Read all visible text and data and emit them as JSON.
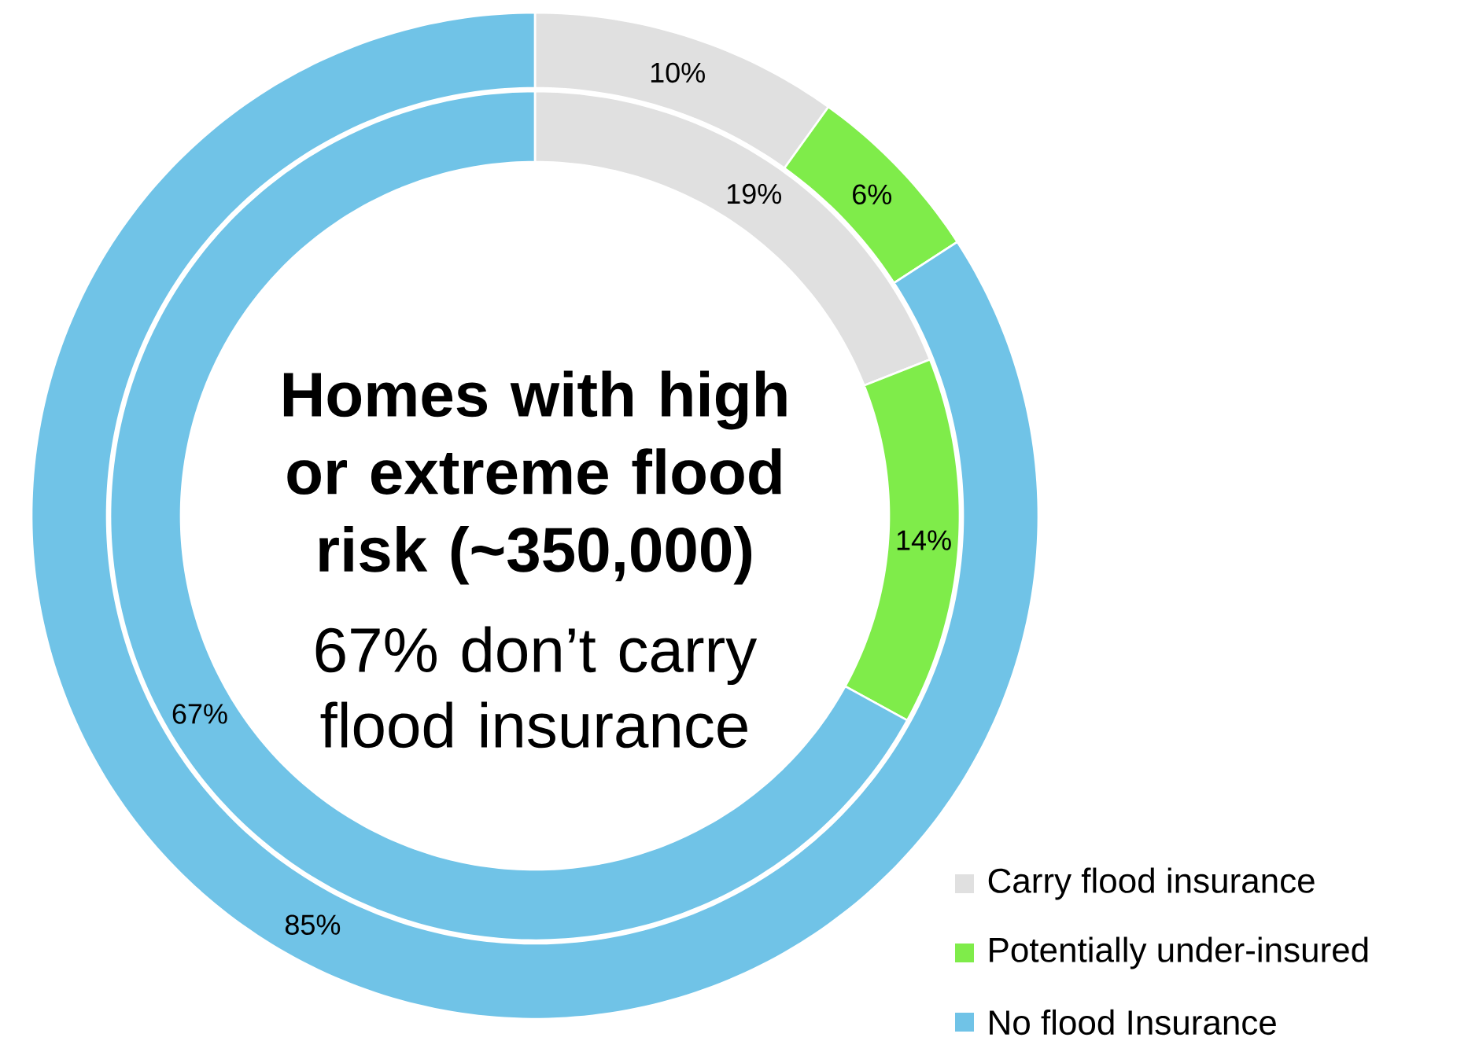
{
  "chart_data": {
    "type": "donut",
    "title": "Homes with high or extreme flood risk (~350,000)",
    "subtitle": "67% don’t carry flood insurance",
    "categories": [
      "Carry flood insurance",
      "Potentially under-insured",
      "No flood Insurance"
    ],
    "colors": [
      "#e0e0e0",
      "#7fec4a",
      "#70c3e7"
    ],
    "series": [
      {
        "values": [
          10,
          6,
          85
        ],
        "value_labels": [
          "10%",
          "6%",
          "85%"
        ]
      },
      {
        "values": [
          19,
          14,
          67
        ],
        "value_labels": [
          "19%",
          "14%",
          "67%"
        ]
      }
    ],
    "data_labels": true,
    "legend": "bottom right"
  }
}
